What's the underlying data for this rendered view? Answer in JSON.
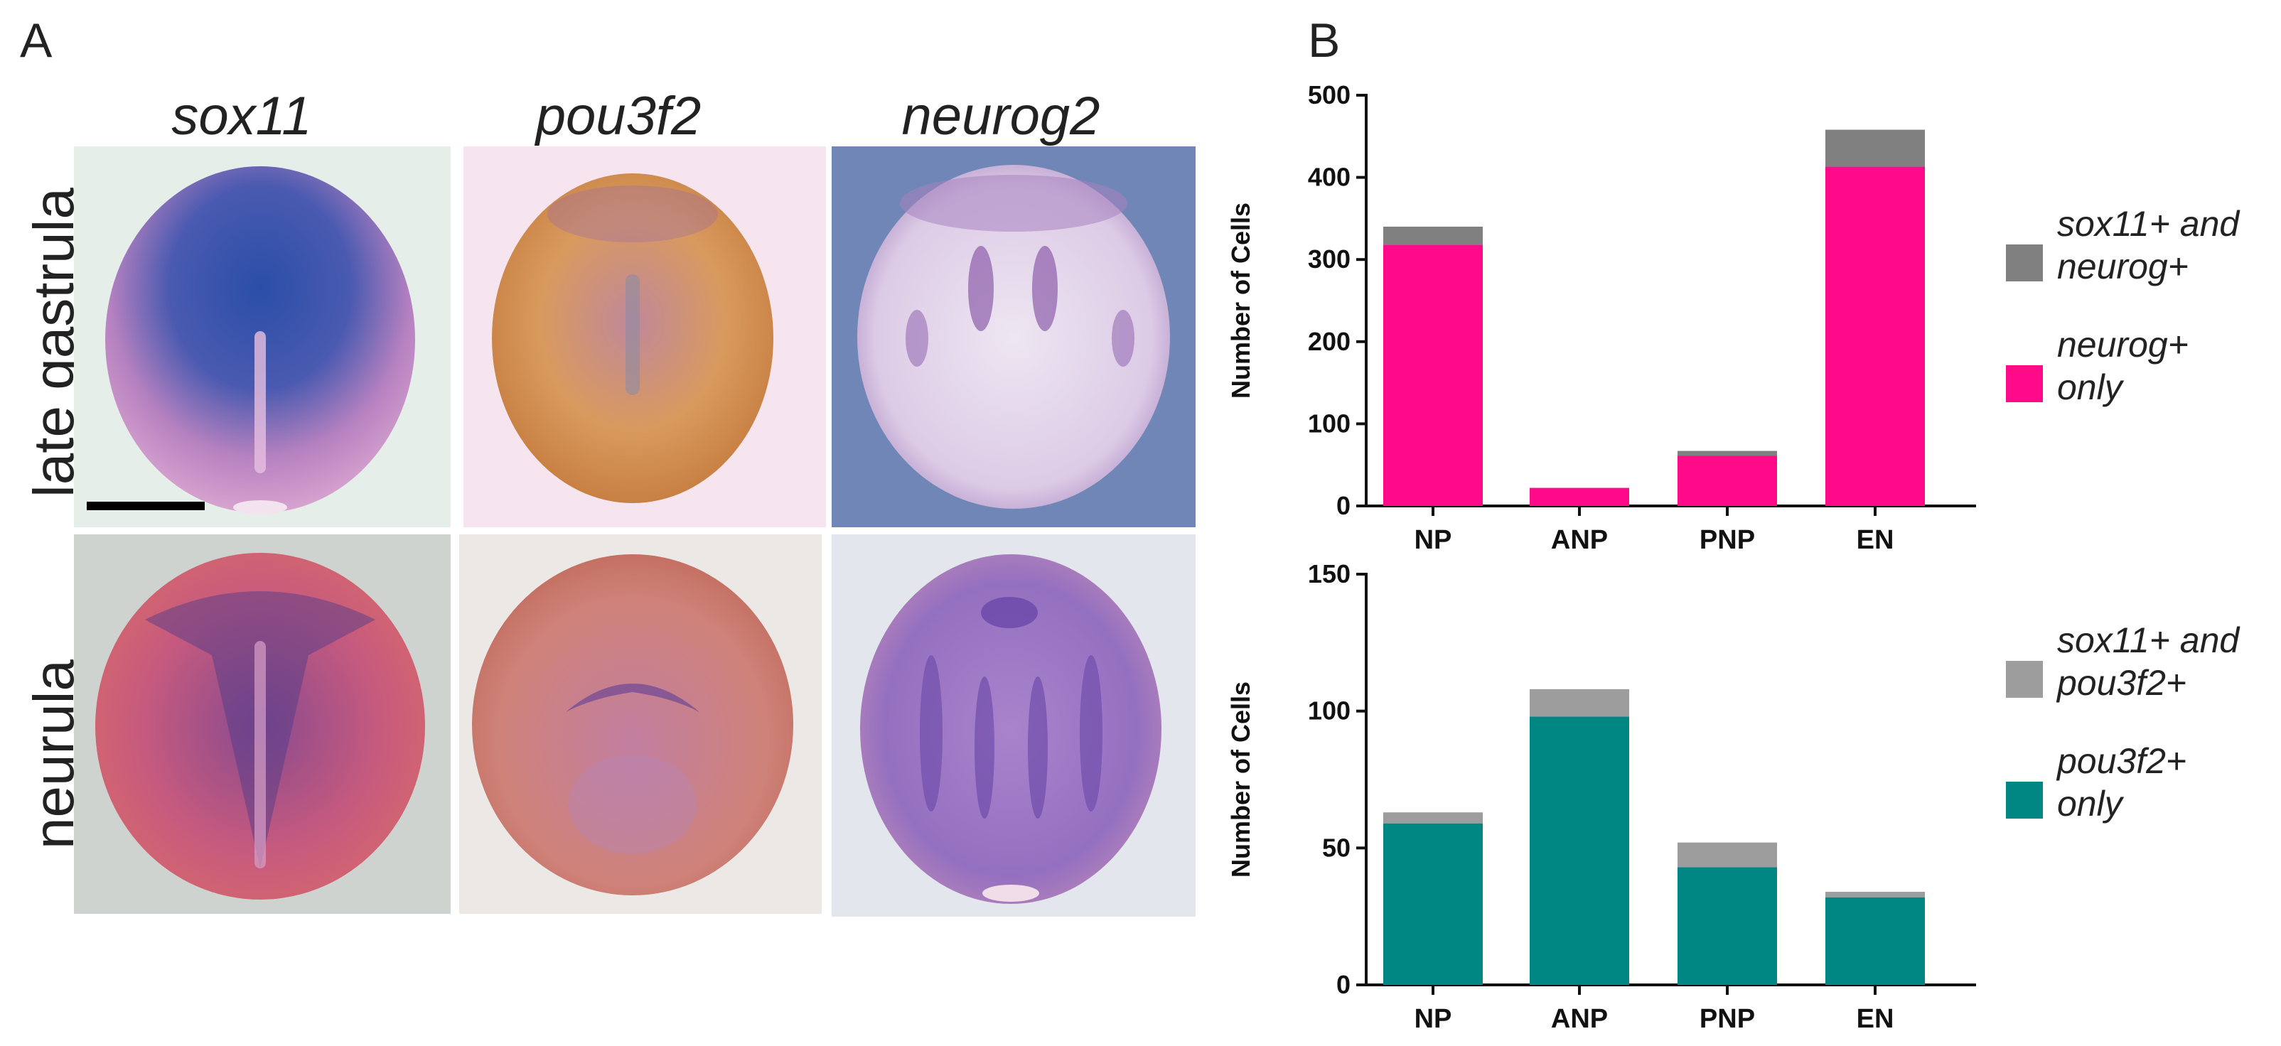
{
  "panels": {
    "a": "A",
    "b": "B"
  },
  "genes": [
    "sox11",
    "pou3f2",
    "neurog2"
  ],
  "stages": [
    "late gastrula",
    "neurula"
  ],
  "images": [
    {
      "id": "late-gastrula-sox11",
      "bg": "#e6eeea",
      "embryo": "#c37fb8",
      "stain": "#2c4fa8"
    },
    {
      "id": "late-gastrula-pou3f2",
      "bg": "#f6e4ee",
      "embryo": "#d8935a",
      "stain": "#9a6aa8"
    },
    {
      "id": "late-gastrula-neurog2",
      "bg": "#6f86b6",
      "embryo": "#e5d9ec",
      "stain": "#7e4aa0"
    },
    {
      "id": "neurula-sox11",
      "bg": "#cfd3d0",
      "embryo": "#c7587a",
      "stain": "#4a3a8a"
    },
    {
      "id": "neurula-pou3f2",
      "bg": "#ece8e6",
      "embryo": "#cf8279",
      "stain": "#6a4a98"
    },
    {
      "id": "neurula-neurog2",
      "bg": "#e3e6ec",
      "embryo": "#b486c8",
      "stain": "#5b39a0"
    }
  ],
  "chart_data": [
    {
      "type": "bar",
      "stacked": true,
      "categories": [
        "NP",
        "ANP",
        "PNP",
        "EN"
      ],
      "ylabel": "Number of Cells",
      "ylim": [
        0,
        500
      ],
      "yticks": [
        0,
        100,
        200,
        300,
        400,
        500
      ],
      "series": [
        {
          "name": "neurog+ only",
          "legend_lines": [
            "neurog+",
            "only"
          ],
          "color": "#ff0a88",
          "values": [
            318,
            22,
            61,
            413
          ]
        },
        {
          "name": "sox11+ and neurog+",
          "legend_lines": [
            "sox11+ and",
            "neurog+"
          ],
          "color": "#808080",
          "values": [
            22,
            0,
            6,
            45
          ]
        }
      ],
      "legend_position": "right"
    },
    {
      "type": "bar",
      "stacked": true,
      "categories": [
        "NP",
        "ANP",
        "PNP",
        "EN"
      ],
      "ylabel": "Number of Cells",
      "ylim": [
        0,
        150
      ],
      "yticks": [
        0,
        50,
        100,
        150
      ],
      "series": [
        {
          "name": "pou3f2+ only",
          "legend_lines": [
            "pou3f2+",
            "only"
          ],
          "color": "#008784",
          "values": [
            59,
            98,
            43,
            32
          ]
        },
        {
          "name": "sox11+ and pou3f2+",
          "legend_lines": [
            "sox11+ and",
            "pou3f2+"
          ],
          "color": "#9d9d9d",
          "values": [
            4,
            10,
            9,
            2
          ]
        }
      ],
      "legend_position": "right"
    }
  ]
}
